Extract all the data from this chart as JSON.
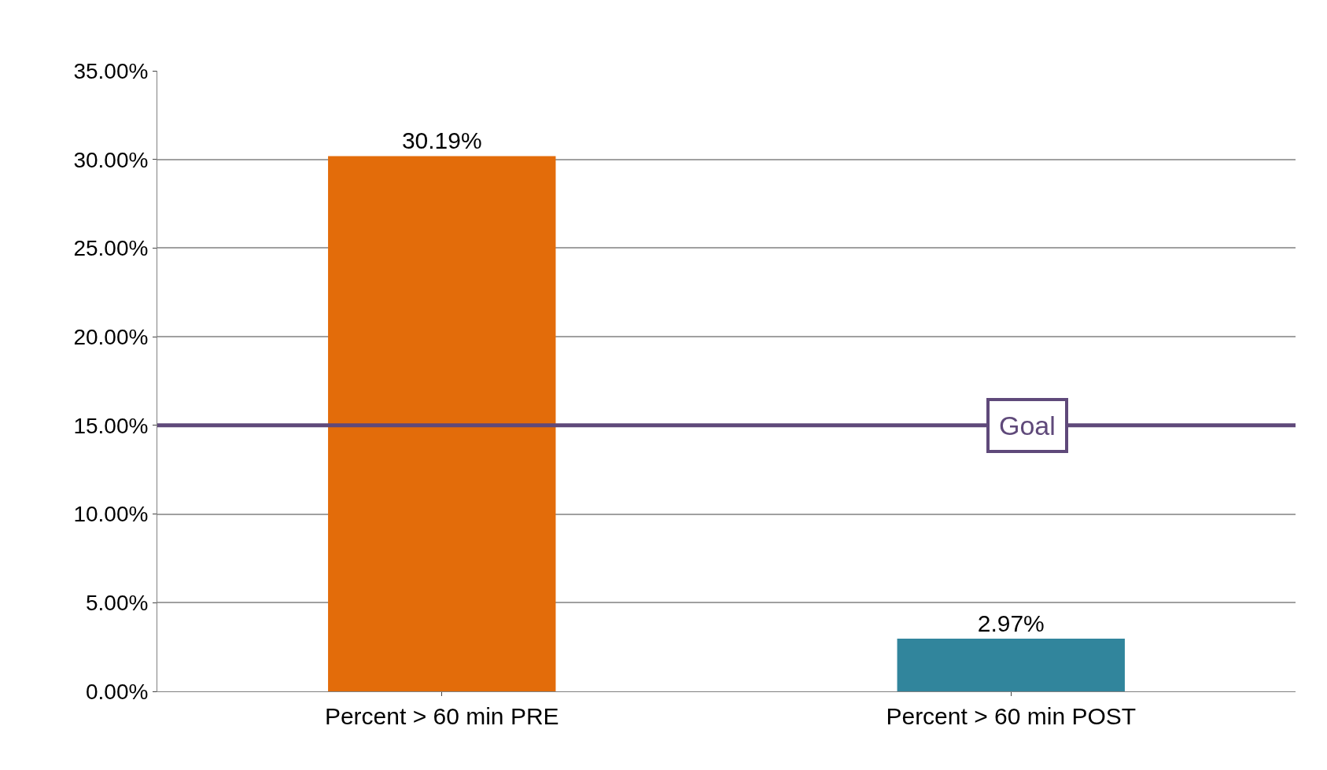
{
  "chart_data": {
    "type": "bar",
    "categories": [
      "Percent > 60 min PRE",
      "Percent > 60 min POST"
    ],
    "values": [
      30.19,
      2.97
    ],
    "colors": [
      "#e36c0a",
      "#31859c"
    ],
    "value_labels": [
      "30.19%",
      "2.97%"
    ],
    "ylim": [
      0,
      35
    ],
    "yticks": [
      {
        "value": 0,
        "label": "0.00%"
      },
      {
        "value": 5,
        "label": "5.00%"
      },
      {
        "value": 10,
        "label": "10.00%"
      },
      {
        "value": 15,
        "label": "15.00%"
      },
      {
        "value": 20,
        "label": "20.00%"
      },
      {
        "value": 25,
        "label": "25.00%"
      },
      {
        "value": 30,
        "label": "30.00%"
      },
      {
        "value": 35,
        "label": "35.00%"
      }
    ],
    "grid": "y",
    "ref_lines": [
      {
        "axis": "y",
        "value": 15,
        "label": "Goal",
        "color": "#5f497a",
        "line_style": "solid"
      }
    ]
  }
}
